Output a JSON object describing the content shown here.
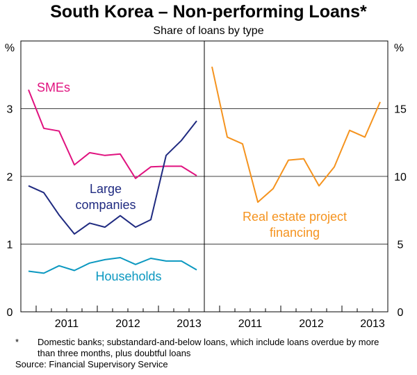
{
  "title": "South Korea – Non-performing Loans*",
  "subtitle": "Share of loans by type",
  "footnote_mark": "*",
  "footnote": "Domestic banks; substandard-and-below loans, which include loans overdue by more than three months, plus doubtful loans",
  "source": "Source: Financial Supervisory Service",
  "chart_data": [
    {
      "type": "line",
      "panel": "left",
      "ylabel": "%",
      "ylim": [
        0,
        4
      ],
      "yticks": [
        "0",
        "1",
        "2",
        "3"
      ],
      "yticks_right": [
        "0",
        "5",
        "10",
        "15"
      ],
      "x_tick_labels": [
        "2011",
        "2012",
        "2013"
      ],
      "x_quarters": [
        "Q4 2010",
        "Q1 2011",
        "Q2 2011",
        "Q3 2011",
        "Q4 2011",
        "Q1 2012",
        "Q2 2012",
        "Q3 2012",
        "Q4 2012",
        "Q1 2013",
        "Q2 2013",
        "Q3 2013"
      ],
      "grid": "horizontal",
      "series": [
        {
          "name": "SMEs",
          "color": "#e0127f",
          "values": [
            3.28,
            2.71,
            2.67,
            2.17,
            2.35,
            2.31,
            2.33,
            1.97,
            2.14,
            2.15,
            2.15,
            2.01
          ]
        },
        {
          "name": "Large companies",
          "color": "#1f2a80",
          "values": [
            1.86,
            1.76,
            1.43,
            1.15,
            1.31,
            1.25,
            1.42,
            1.25,
            1.36,
            2.31,
            2.53,
            2.82
          ]
        },
        {
          "name": "Households",
          "color": "#0b98c0",
          "values": [
            0.6,
            0.57,
            0.68,
            0.61,
            0.72,
            0.77,
            0.8,
            0.7,
            0.79,
            0.75,
            0.75,
            0.62
          ]
        }
      ]
    },
    {
      "type": "line",
      "panel": "right",
      "ylabel": "%",
      "ylim": [
        0,
        20
      ],
      "yticks": [
        "0",
        "5",
        "10",
        "15"
      ],
      "x_tick_labels": [
        "2011",
        "2012",
        "2013"
      ],
      "x_quarters": [
        "Q4 2010",
        "Q1 2011",
        "Q2 2011",
        "Q3 2011",
        "Q4 2011",
        "Q1 2012",
        "Q2 2012",
        "Q3 2012",
        "Q4 2012",
        "Q1 2013",
        "Q2 2013",
        "Q3 2013"
      ],
      "grid": "horizontal",
      "series": [
        {
          "name": "Real estate project financing",
          "color": "#f5931e",
          "values": [
            18.1,
            12.9,
            12.4,
            8.1,
            9.1,
            11.2,
            11.3,
            9.3,
            10.7,
            13.4,
            12.9,
            15.5
          ]
        }
      ]
    }
  ],
  "labels": {
    "smes": "SMEs",
    "large_1": "Large",
    "large_2": "companies",
    "households": "Households",
    "re_1": "Real estate project",
    "re_2": "financing"
  }
}
